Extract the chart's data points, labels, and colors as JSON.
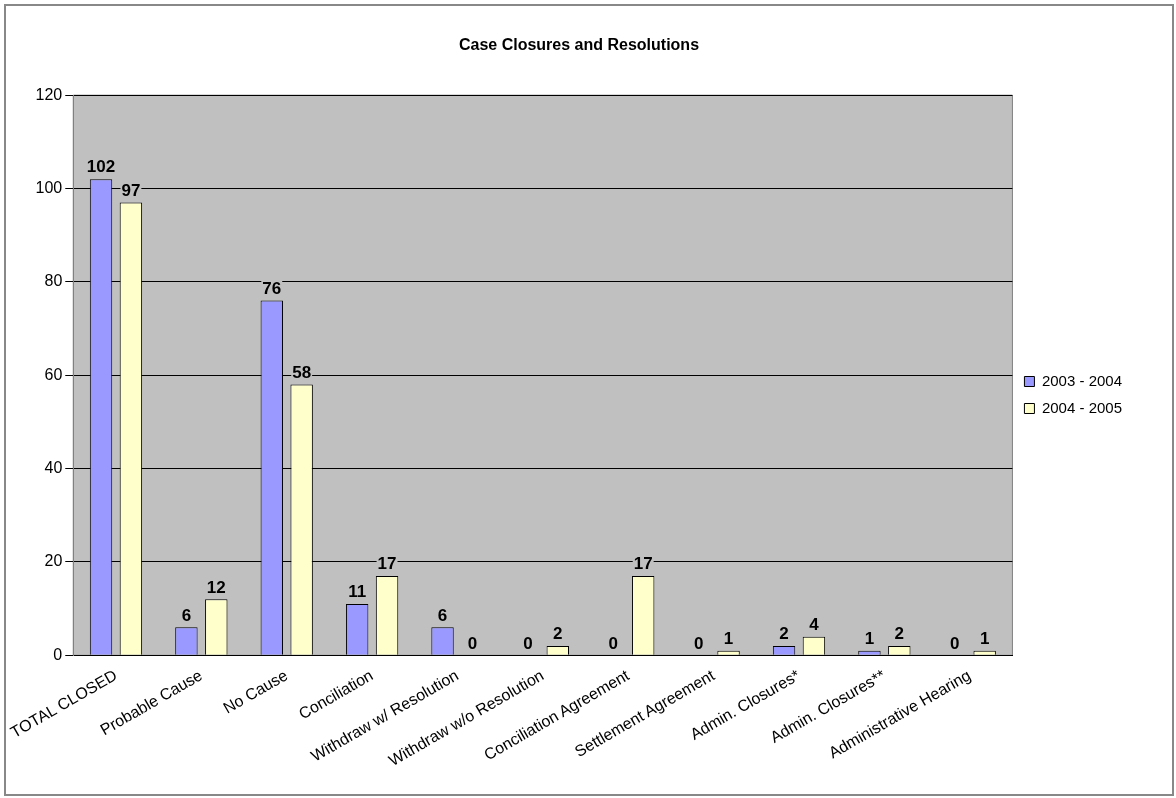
{
  "chart_data": {
    "type": "bar",
    "title": "Case Closures and Resolutions",
    "categories": [
      "TOTAL CLOSED",
      "Probable Cause",
      "No Cause",
      "Conciliation",
      "Withdraw w/ Resolution",
      "Withdraw w/o Resolution",
      "Conciliation Agreement",
      "Settlement Agreement",
      "Admin. Closures*",
      "Admin. Closures**",
      "Administrative Hearing"
    ],
    "series": [
      {
        "name": "2003 - 2004",
        "color": "#9999ff",
        "values": [
          102,
          6,
          76,
          11,
          6,
          0,
          0,
          0,
          2,
          1,
          0
        ]
      },
      {
        "name": "2004 - 2005",
        "color": "#ffffcc",
        "values": [
          97,
          12,
          58,
          17,
          0,
          2,
          17,
          1,
          4,
          2,
          1
        ]
      }
    ],
    "ylim": [
      0,
      120
    ],
    "yticks": [
      0,
      20,
      40,
      60,
      80,
      100,
      120
    ],
    "grid": "y",
    "legend": "right",
    "data_labels": true
  }
}
